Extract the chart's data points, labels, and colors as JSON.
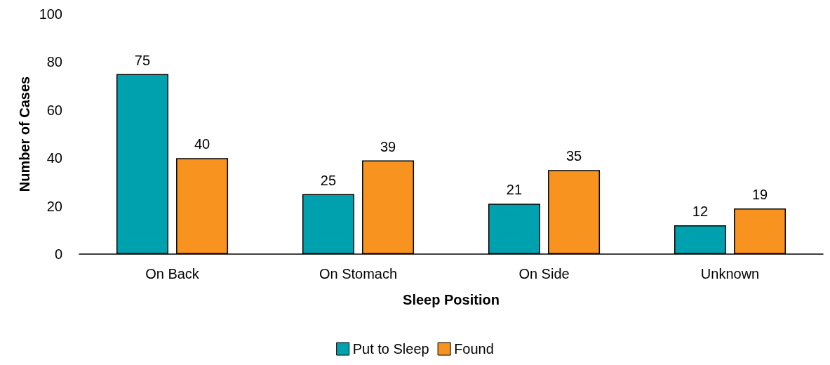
{
  "chart_data": {
    "type": "bar",
    "xlabel": "Sleep Position",
    "ylabel": "Number of Cases",
    "categories": [
      "On Back",
      "On Stomach",
      "On Side",
      "Unknown"
    ],
    "series": [
      {
        "name": "Put to Sleep",
        "color": "#00a1ae",
        "values": [
          75,
          25,
          21,
          12
        ]
      },
      {
        "name": "Found",
        "color": "#f7931e",
        "values": [
          40,
          39,
          35,
          19
        ]
      }
    ],
    "ylim": [
      0,
      100
    ],
    "yticks": [
      0,
      20,
      40,
      60,
      80,
      100
    ],
    "grid": false,
    "legend": "bottom",
    "data_labels": true
  }
}
